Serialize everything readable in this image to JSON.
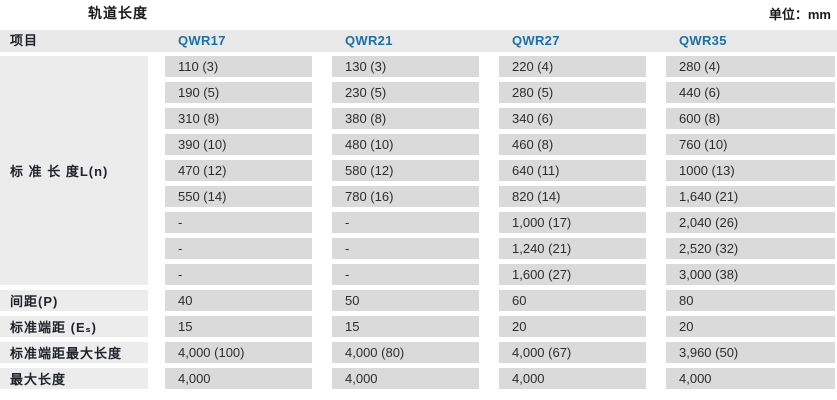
{
  "title": "轨道长度",
  "unit_label": "单位：mm",
  "colors": {
    "header_bg": "#e9e9e9",
    "label_bg": "#ececec",
    "cell_bg": "#dadada",
    "accent_blue": "#1c71a3",
    "value_text": "#2d2d2d"
  },
  "table": {
    "columns": [
      "项目",
      "QWR17",
      "QWR21",
      "QWR27",
      "QWR35"
    ],
    "standard_length": {
      "label": "标 准 长 度L(n)",
      "rows": [
        [
          "110 (3)",
          "130 (3)",
          "220 (4)",
          "280 (4)"
        ],
        [
          "190 (5)",
          "230 (5)",
          "280 (5)",
          "440 (6)"
        ],
        [
          "310 (8)",
          "380 (8)",
          "340 (6)",
          "600 (8)"
        ],
        [
          "390 (10)",
          "480 (10)",
          "460 (8)",
          "760 (10)"
        ],
        [
          "470 (12)",
          "580 (12)",
          "640 (11)",
          "1000 (13)"
        ],
        [
          "550 (14)",
          "780 (16)",
          "820 (14)",
          "1,640 (21)"
        ],
        [
          "-",
          "-",
          "1,000 (17)",
          "2,040 (26)"
        ],
        [
          "-",
          "-",
          "1,240 (21)",
          "2,520 (32)"
        ],
        [
          "-",
          "-",
          "1,600 (27)",
          "3,000 (38)"
        ]
      ]
    },
    "spec_rows": [
      {
        "label": "间距(P)",
        "values": [
          "40",
          "50",
          "60",
          "80"
        ]
      },
      {
        "label": "标准端距 (Eₛ)",
        "values": [
          "15",
          "15",
          "20",
          "20"
        ]
      },
      {
        "label": "标准端距最大长度",
        "values": [
          "4,000 (100)",
          "4,000 (80)",
          "4,000 (67)",
          "3,960 (50)"
        ]
      },
      {
        "label": "最大长度",
        "values": [
          "4,000",
          "4,000",
          "4,000",
          "4,000"
        ]
      }
    ]
  }
}
